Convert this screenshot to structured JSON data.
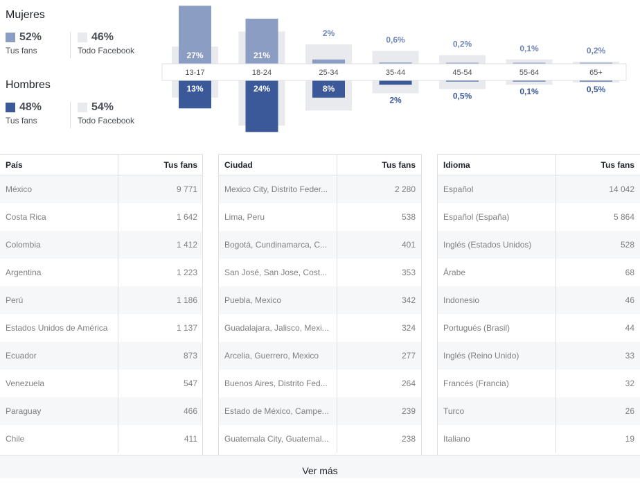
{
  "summary": {
    "women": {
      "title": "Mujeres",
      "your_fans_pct": "52%",
      "your_fans_label": "Tus fans",
      "all_fb_pct": "46%",
      "all_fb_label": "Todo Facebook"
    },
    "men": {
      "title": "Hombres",
      "your_fans_pct": "48%",
      "your_fans_label": "Tus fans",
      "all_fb_pct": "54%",
      "all_fb_label": "Todo Facebook"
    }
  },
  "colors": {
    "women": "#8b9dc3",
    "men": "#3b5998",
    "facebook": "#e9eaed",
    "women_text": "#6d84b4",
    "men_text": "#3b5998"
  },
  "chart_data": {
    "type": "bar",
    "categories": [
      "13-17",
      "18-24",
      "25-34",
      "35-44",
      "45-54",
      "55-64",
      "65+"
    ],
    "series": [
      {
        "name": "Mujeres",
        "values": [
          27,
          21,
          2,
          0.6,
          0.2,
          0.1,
          0.2
        ],
        "labels": [
          "27%",
          "21%",
          "2%",
          "0,6%",
          "0,2%",
          "0,1%",
          "0,2%"
        ]
      },
      {
        "name": "Hombres",
        "values": [
          13,
          24,
          8,
          2,
          0.5,
          0.1,
          0.5
        ],
        "labels": [
          "13%",
          "24%",
          "8%",
          "2%",
          "0,5%",
          "0,1%",
          "0,5%"
        ]
      }
    ],
    "facebook_women": [
      8,
      15,
      9,
      6,
      4,
      2,
      1
    ],
    "facebook_men": [
      8,
      21,
      14,
      6,
      4,
      2,
      1
    ],
    "ylim": [
      0,
      30
    ]
  },
  "tables": {
    "country": {
      "header": "País",
      "value_header": "Tus fans",
      "rows": [
        {
          "name": "México",
          "value": "9 771"
        },
        {
          "name": "Costa Rica",
          "value": "1 642"
        },
        {
          "name": "Colombia",
          "value": "1 412"
        },
        {
          "name": "Argentina",
          "value": "1 223"
        },
        {
          "name": "Perú",
          "value": "1 186"
        },
        {
          "name": "Estados Unidos de América",
          "value": "1 137"
        },
        {
          "name": "Ecuador",
          "value": "873"
        },
        {
          "name": "Venezuela",
          "value": "547"
        },
        {
          "name": "Paraguay",
          "value": "466"
        },
        {
          "name": "Chile",
          "value": "411"
        }
      ]
    },
    "city": {
      "header": "Ciudad",
      "value_header": "Tus fans",
      "rows": [
        {
          "name": "Mexico City, Distrito Feder...",
          "value": "2 280"
        },
        {
          "name": "Lima, Peru",
          "value": "538"
        },
        {
          "name": "Bogotá, Cundinamarca, C...",
          "value": "401"
        },
        {
          "name": "San José, San Jose, Cost...",
          "value": "353"
        },
        {
          "name": "Puebla, Mexico",
          "value": "342"
        },
        {
          "name": "Guadalajara, Jalisco, Mexi...",
          "value": "324"
        },
        {
          "name": "Arcelia, Guerrero, Mexico",
          "value": "277"
        },
        {
          "name": "Buenos Aires, Distrito Fed...",
          "value": "264"
        },
        {
          "name": "Estado de México, Campe...",
          "value": "239"
        },
        {
          "name": "Guatemala City, Guatemal...",
          "value": "238"
        }
      ]
    },
    "language": {
      "header": "Idioma",
      "value_header": "Tus fans",
      "rows": [
        {
          "name": "Español",
          "value": "14 042"
        },
        {
          "name": "Español (España)",
          "value": "5 864"
        },
        {
          "name": "Inglés (Estados Unidos)",
          "value": "528"
        },
        {
          "name": "Árabe",
          "value": "68"
        },
        {
          "name": "Indonesio",
          "value": "46"
        },
        {
          "name": "Portugués (Brasil)",
          "value": "44"
        },
        {
          "name": "Inglés (Reino Unido)",
          "value": "33"
        },
        {
          "name": "Francés (Francia)",
          "value": "32"
        },
        {
          "name": "Turco",
          "value": "26"
        },
        {
          "name": "Italiano",
          "value": "19"
        }
      ]
    }
  },
  "footer": {
    "see_more": "Ver más"
  }
}
